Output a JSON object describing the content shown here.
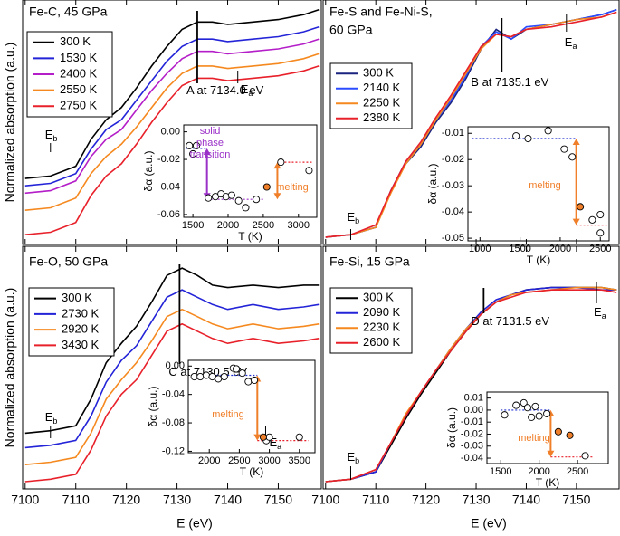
{
  "x_label": "E (eV)",
  "y_label": "Normalized absorption (a.u.)",
  "chart_data": [
    {
      "type": "line",
      "title": [
        "Fe-C, 45 GPa"
      ],
      "legend": "upper left",
      "x": [
        7100,
        7105,
        7110,
        7113,
        7116,
        7119,
        7122,
        7125,
        7128,
        7131,
        7134,
        7137,
        7140,
        7145,
        7150,
        7155,
        7158
      ],
      "xlim": [
        7099.5,
        7158.5
      ],
      "xticks": [
        7100,
        7110,
        7120,
        7130,
        7140,
        7150
      ],
      "ylim": [
        0,
        1
      ],
      "series": [
        {
          "name": "300 K",
          "color": "#000000",
          "values": [
            0.27,
            0.28,
            0.32,
            0.43,
            0.51,
            0.56,
            0.64,
            0.73,
            0.81,
            0.88,
            0.91,
            0.91,
            0.9,
            0.91,
            0.92,
            0.94,
            0.96
          ]
        },
        {
          "name": "1530 K",
          "color": "#2323d8",
          "values": [
            0.24,
            0.25,
            0.29,
            0.39,
            0.47,
            0.51,
            0.59,
            0.67,
            0.75,
            0.81,
            0.84,
            0.84,
            0.83,
            0.84,
            0.85,
            0.87,
            0.89
          ]
        },
        {
          "name": "2400 K",
          "color": "#b41ec8",
          "values": [
            0.21,
            0.22,
            0.26,
            0.36,
            0.43,
            0.47,
            0.55,
            0.63,
            0.7,
            0.76,
            0.79,
            0.79,
            0.78,
            0.79,
            0.8,
            0.82,
            0.84
          ]
        },
        {
          "name": "2550 K",
          "color": "#f5891f",
          "values": [
            0.14,
            0.15,
            0.19,
            0.29,
            0.36,
            0.41,
            0.48,
            0.56,
            0.64,
            0.7,
            0.73,
            0.73,
            0.72,
            0.73,
            0.74,
            0.76,
            0.78
          ]
        },
        {
          "name": "2750 K",
          "color": "#e8202a",
          "values": [
            0.04,
            0.05,
            0.09,
            0.2,
            0.28,
            0.33,
            0.41,
            0.5,
            0.58,
            0.65,
            0.68,
            0.68,
            0.67,
            0.68,
            0.69,
            0.71,
            0.73
          ]
        }
      ],
      "markers": [
        {
          "label": "A at 7134.0 eV",
          "x": 7134.0
        },
        {
          "label": "E",
          "sub": "b",
          "x": 7105
        },
        {
          "label": "E",
          "sub": "a",
          "x": 7142
        }
      ]
    },
    {
      "type": "line",
      "title": [
        "Fe-S and Fe-Ni-S,",
        "60 GPa"
      ],
      "legend": "upper left",
      "x": [
        7100,
        7105,
        7110,
        7113,
        7116,
        7119,
        7122,
        7125,
        7128,
        7131,
        7134,
        7137,
        7140,
        7145,
        7150,
        7155,
        7158
      ],
      "xlim": [
        7099.5,
        7158.5
      ],
      "xticks": [
        7100,
        7110,
        7120,
        7130,
        7140,
        7150
      ],
      "ylim": [
        0,
        1
      ],
      "series": [
        {
          "name": "300 K",
          "color": "#1a237e",
          "values": [
            0.03,
            0.04,
            0.07,
            0.22,
            0.33,
            0.4,
            0.5,
            0.58,
            0.68,
            0.8,
            0.88,
            0.84,
            0.88,
            0.9,
            0.92,
            0.94,
            0.96
          ]
        },
        {
          "name": "2140 K",
          "color": "#2a4bff",
          "values": [
            0.03,
            0.04,
            0.07,
            0.22,
            0.34,
            0.41,
            0.51,
            0.59,
            0.69,
            0.81,
            0.87,
            0.84,
            0.89,
            0.9,
            0.92,
            0.94,
            0.96
          ]
        },
        {
          "name": "2250 K",
          "color": "#f5891f",
          "values": [
            0.03,
            0.04,
            0.07,
            0.21,
            0.33,
            0.41,
            0.51,
            0.6,
            0.7,
            0.8,
            0.86,
            0.85,
            0.88,
            0.9,
            0.92,
            0.93,
            0.95
          ]
        },
        {
          "name": "2380 K",
          "color": "#e8202a",
          "values": [
            0.03,
            0.04,
            0.08,
            0.22,
            0.34,
            0.42,
            0.52,
            0.61,
            0.71,
            0.81,
            0.86,
            0.85,
            0.88,
            0.89,
            0.91,
            0.93,
            0.95
          ]
        }
      ],
      "markers": [
        {
          "label": "B at 7135.1 eV",
          "x": 7135.1
        },
        {
          "label": "E",
          "sub": "b",
          "x": 7105
        },
        {
          "label": "E",
          "sub": "a",
          "x": 7148
        }
      ]
    },
    {
      "type": "line",
      "title": [
        "Fe-O, 50 GPa"
      ],
      "legend": "upper left",
      "x": [
        7100,
        7105,
        7110,
        7113,
        7116,
        7119,
        7122,
        7125,
        7128,
        7131,
        7134,
        7137,
        7140,
        7145,
        7150,
        7155,
        7158
      ],
      "xlim": [
        7099.5,
        7158.5
      ],
      "xticks": [
        7100,
        7110,
        7120,
        7130,
        7140,
        7150
      ],
      "ylim": [
        0,
        1
      ],
      "series": [
        {
          "name": "300 K",
          "color": "#000000",
          "values": [
            0.23,
            0.24,
            0.26,
            0.37,
            0.52,
            0.6,
            0.67,
            0.77,
            0.88,
            0.91,
            0.88,
            0.84,
            0.83,
            0.84,
            0.83,
            0.84,
            0.84
          ]
        },
        {
          "name": "2730 K",
          "color": "#2323d8",
          "values": [
            0.17,
            0.18,
            0.2,
            0.3,
            0.44,
            0.53,
            0.59,
            0.69,
            0.79,
            0.82,
            0.79,
            0.76,
            0.74,
            0.76,
            0.74,
            0.75,
            0.76
          ]
        },
        {
          "name": "2920 K",
          "color": "#f5891f",
          "values": [
            0.1,
            0.11,
            0.13,
            0.23,
            0.37,
            0.45,
            0.52,
            0.61,
            0.71,
            0.74,
            0.71,
            0.68,
            0.66,
            0.68,
            0.66,
            0.67,
            0.68
          ]
        },
        {
          "name": "3430 K",
          "color": "#e8202a",
          "values": [
            0.03,
            0.04,
            0.06,
            0.16,
            0.3,
            0.39,
            0.45,
            0.55,
            0.65,
            0.68,
            0.65,
            0.62,
            0.6,
            0.62,
            0.6,
            0.61,
            0.62
          ]
        }
      ],
      "markers": [
        {
          "label": "C at 7130.5 eV",
          "x": 7130.5
        },
        {
          "label": "E",
          "sub": "b",
          "x": 7105
        },
        {
          "label": "E",
          "sub": "a",
          "x": 7147.5
        }
      ]
    },
    {
      "type": "line",
      "title": [
        "Fe-Si, 15 GPa"
      ],
      "legend": "upper left",
      "x": [
        7100,
        7105,
        7110,
        7113,
        7116,
        7119,
        7122,
        7125,
        7128,
        7131,
        7134,
        7137,
        7140,
        7145,
        7150,
        7155,
        7158
      ],
      "xlim": [
        7099.5,
        7158.5
      ],
      "xticks": [
        7100,
        7110,
        7120,
        7130,
        7140,
        7150
      ],
      "ylim": [
        0,
        1
      ],
      "series": [
        {
          "name": "300 K",
          "color": "#000000",
          "values": [
            0.03,
            0.04,
            0.07,
            0.18,
            0.29,
            0.39,
            0.48,
            0.57,
            0.65,
            0.72,
            0.77,
            0.8,
            0.82,
            0.83,
            0.83,
            0.83,
            0.82
          ]
        },
        {
          "name": "2090 K",
          "color": "#2323d8",
          "values": [
            0.03,
            0.04,
            0.07,
            0.19,
            0.3,
            0.4,
            0.49,
            0.58,
            0.66,
            0.73,
            0.78,
            0.8,
            0.82,
            0.83,
            0.83,
            0.82,
            0.82
          ]
        },
        {
          "name": "2230 K",
          "color": "#f5891f",
          "values": [
            0.03,
            0.04,
            0.08,
            0.19,
            0.31,
            0.4,
            0.49,
            0.58,
            0.66,
            0.72,
            0.77,
            0.8,
            0.81,
            0.82,
            0.83,
            0.83,
            0.82
          ]
        },
        {
          "name": "2600 K",
          "color": "#e8202a",
          "values": [
            0.03,
            0.04,
            0.08,
            0.19,
            0.3,
            0.4,
            0.49,
            0.57,
            0.65,
            0.72,
            0.77,
            0.79,
            0.81,
            0.82,
            0.82,
            0.82,
            0.81
          ]
        }
      ],
      "markers": [
        {
          "label": "D at 7131.5 eV",
          "x": 7131.5
        },
        {
          "label": "E",
          "sub": "b",
          "x": 7105
        },
        {
          "label": "E",
          "sub": "a",
          "x": 7154
        }
      ]
    },
    {
      "type": "scatter",
      "x_label": "T (K)",
      "y_label": "δα (a.u.)",
      "xlim": [
        1370,
        3260
      ],
      "xticks": [
        1500,
        2000,
        2500,
        3000
      ],
      "ylim": [
        -0.062,
        0.005
      ],
      "yticks": [
        {
          "value": 0,
          "label": "0.00"
        },
        -0.02,
        -0.04,
        -0.06
      ],
      "series": [
        {
          "color": "#ffffff",
          "x": [
            1450,
            1500,
            1550,
            1720,
            1820,
            1900,
            1970,
            2050,
            2150,
            2250,
            2400,
            2750,
            3150
          ],
          "values": [
            -0.01,
            -0.016,
            -0.01,
            -0.048,
            -0.047,
            -0.045,
            -0.047,
            -0.046,
            -0.05,
            -0.055,
            -0.049,
            -0.022,
            -0.028
          ]
        },
        {
          "color": "#f07f2a",
          "x": [
            2550
          ],
          "values": [
            -0.04
          ]
        }
      ],
      "ref_lines": [
        {
          "y": -0.012,
          "x": [
            1400,
            1700
          ],
          "color": "#2030d0"
        },
        {
          "y": -0.049,
          "x": [
            1700,
            2500
          ],
          "color": "#9b30c8"
        },
        {
          "y": -0.022,
          "x": [
            2700,
            3200
          ],
          "color": "#e8202a"
        }
      ],
      "arrow_colors": [
        "#9b30c8",
        "#f07f2a"
      ],
      "annotations": [
        {
          "text": "solid",
          "color": "#9b30c8"
        },
        {
          "text": "phase",
          "color": "#9b30c8"
        },
        {
          "text": "transition",
          "color": "#9b30c8"
        },
        {
          "text": "melting",
          "color": "#f07f2a"
        }
      ]
    },
    {
      "type": "scatter",
      "x_label": "T (K)",
      "y_label": "δα (a.u.)",
      "xlim": [
        850,
        2610
      ],
      "xticks": [
        1000,
        1500,
        2000,
        2500
      ],
      "ylim": [
        -0.051,
        -0.0075
      ],
      "yticks": [
        -0.01,
        -0.02,
        -0.03,
        -0.04,
        -0.05
      ],
      "series": [
        {
          "color": "#ffffff",
          "x": [
            1450,
            1600,
            1850,
            2050,
            2150,
            2400,
            2500,
            2500
          ],
          "values": [
            -0.011,
            -0.012,
            -0.009,
            -0.016,
            -0.019,
            -0.043,
            -0.041,
            -0.048
          ]
        },
        {
          "color": "#f07f2a",
          "x": [
            2250
          ],
          "values": [
            -0.038
          ]
        }
      ],
      "ref_lines": [
        {
          "y": -0.012,
          "x": [
            900,
            2200
          ],
          "color": "#2030d0"
        },
        {
          "y": -0.045,
          "x": [
            2200,
            2600
          ],
          "color": "#e8202a"
        }
      ],
      "arrow_colors": [
        "#f07f2a"
      ],
      "annotations": [
        {
          "text": "melting",
          "color": "#f07f2a"
        }
      ]
    },
    {
      "type": "scatter",
      "x_label": "T (K)",
      "y_label": "δα (a.u.)",
      "xlim": [
        1650,
        3760
      ],
      "xticks": [
        2000,
        2500,
        3000,
        3500
      ],
      "ylim": [
        -0.122,
        0.008
      ],
      "yticks": [
        {
          "value": 0,
          "label": "0.00"
        },
        -0.04,
        -0.08,
        -0.12
      ],
      "series": [
        {
          "color": "#ffffff",
          "x": [
            1750,
            1850,
            1950,
            2050,
            2150,
            2250,
            2400,
            2450,
            2550,
            2650,
            2750,
            2950,
            3000,
            3500
          ],
          "values": [
            -0.015,
            -0.015,
            -0.013,
            -0.015,
            -0.018,
            -0.015,
            -0.003,
            -0.004,
            -0.01,
            -0.022,
            -0.02,
            -0.105,
            -0.1,
            -0.1
          ]
        },
        {
          "color": "#f07f2a",
          "x": [
            2900
          ],
          "values": [
            -0.1
          ]
        }
      ],
      "ref_lines": [
        {
          "y": -0.013,
          "x": [
            1700,
            2800
          ],
          "color": "#2030d0"
        },
        {
          "y": -0.105,
          "x": [
            2800,
            3650
          ],
          "color": "#e8202a"
        }
      ],
      "arrow_colors": [
        "#f07f2a"
      ],
      "annotations": [
        {
          "text": "melting",
          "color": "#f07f2a"
        }
      ]
    },
    {
      "type": "scatter",
      "x_label": "T (K)",
      "y_label": "δα (a.u.)",
      "xlim": [
        1320,
        2900
      ],
      "xticks": [
        1500,
        2000,
        2500
      ],
      "ylim": [
        -0.0445,
        0.015
      ],
      "yticks": [
        0.01,
        {
          "value": 0,
          "label": "0.00"
        },
        -0.01,
        -0.02,
        -0.03,
        -0.04
      ],
      "series": [
        {
          "color": "#ffffff",
          "x": [
            1550,
            1700,
            1800,
            1850,
            1900,
            1950,
            2000,
            2100,
            2600
          ],
          "values": [
            -0.004,
            0.004,
            0.006,
            0.002,
            -0.006,
            0.003,
            -0.005,
            -0.003,
            -0.038
          ]
        },
        {
          "color": "#f07f2a",
          "x": [
            2250,
            2400
          ],
          "values": [
            -0.018,
            -0.021
          ]
        }
      ],
      "ref_lines": [
        {
          "y": 0.0,
          "x": [
            1500,
            2150
          ],
          "color": "#2030d0"
        },
        {
          "y": -0.039,
          "x": [
            2150,
            2700
          ],
          "color": "#e8202a"
        }
      ],
      "arrow_colors": [
        "#f07f2a"
      ],
      "annotations": [
        {
          "text": "melting",
          "color": "#f07f2a"
        }
      ]
    }
  ]
}
